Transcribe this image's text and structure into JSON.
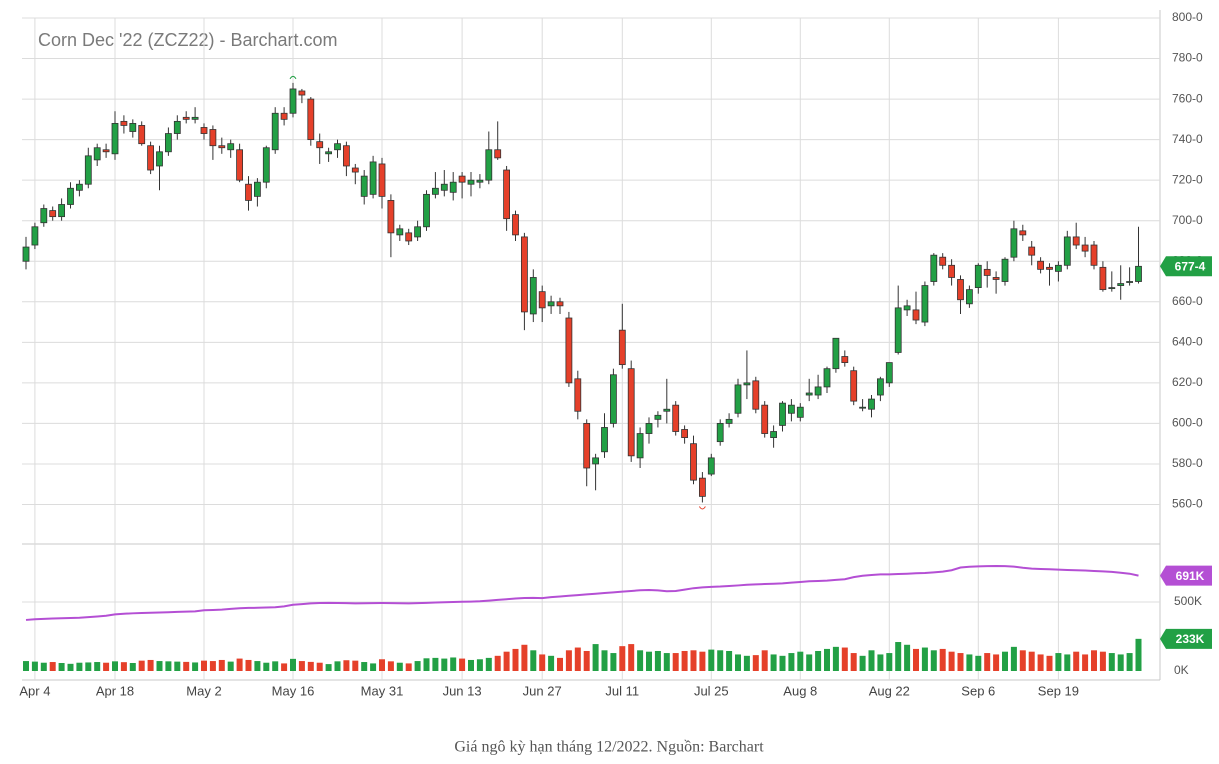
{
  "chart_data": {
    "type": "candlestick",
    "title": "Corn Dec '22 (ZCZ22) - Barchart.com",
    "caption": "Giá ngô kỳ hạn tháng 12/2022. Nguồn: Barchart",
    "up_color": "#22a045",
    "down_color": "#e5402a",
    "categories": [
      null,
      "Apr 4",
      null,
      null,
      null,
      null,
      null,
      null,
      null,
      null,
      "Apr 18",
      null,
      null,
      null,
      null,
      null,
      null,
      null,
      null,
      null,
      "May 2",
      null,
      null,
      null,
      null,
      null,
      null,
      null,
      null,
      null,
      "May 16",
      null,
      null,
      null,
      null,
      null,
      null,
      null,
      null,
      null,
      "May 31",
      null,
      null,
      null,
      null,
      null,
      null,
      null,
      null,
      "Jun 13",
      null,
      null,
      null,
      null,
      null,
      null,
      null,
      null,
      "Jun 27",
      null,
      null,
      null,
      null,
      null,
      null,
      null,
      null,
      "Jul 11",
      null,
      null,
      null,
      null,
      null,
      null,
      null,
      null,
      null,
      "Jul 25",
      null,
      null,
      null,
      null,
      null,
      null,
      null,
      null,
      null,
      "Aug 8",
      null,
      null,
      null,
      null,
      null,
      null,
      null,
      null,
      null,
      "Aug 22",
      null,
      null,
      null,
      null,
      null,
      null,
      null,
      null,
      null,
      "Sep 6",
      null,
      null,
      null,
      null,
      null,
      null,
      null,
      null,
      "Sep 19",
      null,
      null,
      null,
      null,
      null,
      null,
      null,
      null,
      null
    ],
    "candles": [
      [
        680,
        692,
        676,
        687
      ],
      [
        688,
        699,
        686,
        697
      ],
      [
        699,
        708,
        697,
        706
      ],
      [
        705,
        707,
        700,
        702
      ],
      [
        702,
        711,
        700,
        708
      ],
      [
        708,
        719,
        706,
        716
      ],
      [
        715,
        720,
        712,
        718
      ],
      [
        718,
        736,
        716,
        732
      ],
      [
        730,
        738,
        727,
        736
      ],
      [
        735,
        738,
        731,
        734
      ],
      [
        733,
        754,
        730,
        748
      ],
      [
        749,
        752,
        743,
        747
      ],
      [
        744,
        750,
        741,
        748
      ],
      [
        747,
        749,
        737,
        738
      ],
      [
        737,
        739,
        723,
        725
      ],
      [
        727,
        737,
        715,
        734
      ],
      [
        734,
        746,
        732,
        743
      ],
      [
        743,
        752,
        740,
        749
      ],
      [
        751,
        754,
        748,
        750
      ],
      [
        750,
        756,
        748,
        751
      ],
      [
        746,
        748,
        740,
        743
      ],
      [
        745,
        747,
        730,
        737
      ],
      [
        737,
        741,
        733,
        736
      ],
      [
        735,
        740,
        731,
        738
      ],
      [
        735,
        738,
        719,
        720
      ],
      [
        718,
        722,
        705,
        710
      ],
      [
        712,
        721,
        707,
        719
      ],
      [
        719,
        737,
        716,
        736
      ],
      [
        735,
        756,
        733,
        753
      ],
      [
        753,
        756,
        747,
        750
      ],
      [
        753,
        768,
        751,
        765
      ],
      [
        764,
        765,
        758,
        762
      ],
      [
        760,
        761,
        737,
        740
      ],
      [
        739,
        743,
        728,
        736
      ],
      [
        733,
        736,
        729,
        734
      ],
      [
        735,
        740,
        731,
        738
      ],
      [
        737,
        739,
        722,
        727
      ],
      [
        726,
        728,
        718,
        724
      ],
      [
        712,
        725,
        708,
        722
      ],
      [
        713,
        732,
        711,
        729
      ],
      [
        728,
        731,
        706,
        712
      ],
      [
        710,
        713,
        682,
        694
      ],
      [
        693,
        698,
        690,
        696
      ],
      [
        694,
        696,
        688,
        690
      ],
      [
        692,
        700,
        690,
        697
      ],
      [
        697,
        715,
        695,
        713
      ],
      [
        713,
        724,
        711,
        716
      ],
      [
        715,
        725,
        712,
        718
      ],
      [
        714,
        724,
        710,
        719
      ],
      [
        722,
        724,
        711,
        719
      ],
      [
        718,
        724,
        712,
        720
      ],
      [
        719,
        723,
        716,
        720
      ],
      [
        720,
        744,
        718,
        735
      ],
      [
        735,
        749,
        730,
        731
      ],
      [
        725,
        727,
        695,
        701
      ],
      [
        703,
        705,
        690,
        693
      ],
      [
        692,
        694,
        646,
        655
      ],
      [
        654,
        676,
        650,
        672
      ],
      [
        665,
        668,
        650,
        657
      ],
      [
        658,
        663,
        654,
        660
      ],
      [
        660,
        662,
        654,
        658
      ],
      [
        652,
        655,
        618,
        620
      ],
      [
        622,
        626,
        602,
        606
      ],
      [
        600,
        602,
        569,
        578
      ],
      [
        580,
        585,
        567,
        583
      ],
      [
        586,
        605,
        583,
        598
      ],
      [
        600,
        627,
        598,
        624
      ],
      [
        646,
        659,
        627,
        629
      ],
      [
        627,
        631,
        581,
        584
      ],
      [
        583,
        598,
        578,
        595
      ],
      [
        595,
        603,
        590,
        600
      ],
      [
        602,
        606,
        598,
        604
      ],
      [
        606,
        622,
        600,
        607
      ],
      [
        609,
        611,
        594,
        596
      ],
      [
        597,
        599,
        590,
        593
      ],
      [
        590,
        594,
        570,
        572
      ],
      [
        573,
        576,
        561,
        564
      ],
      [
        575,
        585,
        574,
        583
      ],
      [
        591,
        602,
        589,
        600
      ],
      [
        600,
        605,
        598,
        602
      ],
      [
        605,
        622,
        603,
        619
      ],
      [
        619,
        636,
        612,
        620
      ],
      [
        621,
        623,
        605,
        607
      ],
      [
        609,
        611,
        593,
        595
      ],
      [
        593,
        599,
        588,
        596
      ],
      [
        599,
        611,
        596,
        610
      ],
      [
        605,
        612,
        601,
        609
      ],
      [
        603,
        610,
        601,
        608
      ],
      [
        614,
        622,
        611,
        615
      ],
      [
        614,
        624,
        612,
        618
      ],
      [
        618,
        628,
        615,
        627
      ],
      [
        627,
        642,
        625,
        642
      ],
      [
        633,
        636,
        628,
        630
      ],
      [
        626,
        628,
        609,
        611
      ],
      [
        608,
        612,
        606,
        608
      ],
      [
        607,
        614,
        603,
        612
      ],
      [
        614,
        623,
        611,
        622
      ],
      [
        620,
        630,
        618,
        630
      ],
      [
        635,
        668,
        634,
        657
      ],
      [
        656,
        661,
        653,
        658
      ],
      [
        656,
        665,
        649,
        651
      ],
      [
        650,
        670,
        648,
        668
      ],
      [
        670,
        684,
        668,
        683
      ],
      [
        682,
        684,
        676,
        678
      ],
      [
        678,
        681,
        668,
        672
      ],
      [
        671,
        673,
        654,
        661
      ],
      [
        659,
        668,
        657,
        666
      ],
      [
        667,
        679,
        664,
        678
      ],
      [
        676,
        680,
        667,
        673
      ],
      [
        672,
        675,
        664,
        671
      ],
      [
        670,
        682,
        668,
        681
      ],
      [
        682,
        700,
        680,
        696
      ],
      [
        695,
        698,
        690,
        693
      ],
      [
        687,
        690,
        678,
        683
      ],
      [
        680,
        682,
        674,
        676
      ],
      [
        677,
        679,
        668,
        676
      ],
      [
        675,
        680,
        670,
        678
      ],
      [
        678,
        695,
        676,
        692
      ],
      [
        692,
        699,
        686,
        688
      ],
      [
        688,
        692,
        682,
        685
      ],
      [
        688,
        690,
        676,
        678
      ],
      [
        677,
        680,
        665,
        666
      ],
      [
        667,
        675,
        665,
        667
      ],
      [
        668,
        678,
        661,
        669
      ],
      [
        670,
        677,
        668,
        670
      ],
      [
        670,
        697,
        669,
        677.5
      ]
    ],
    "ylim": [
      541,
      800
    ],
    "yticks": [
      {
        "value": 560,
        "label": "560-0"
      },
      {
        "value": 580,
        "label": "580-0"
      },
      {
        "value": 600,
        "label": "600-0"
      },
      {
        "value": 620,
        "label": "620-0"
      },
      {
        "value": 640,
        "label": "640-0"
      },
      {
        "value": 660,
        "label": "660-0"
      },
      {
        "value": 680,
        "label": "680-0"
      },
      {
        "value": 700,
        "label": "700-0"
      },
      {
        "value": 720,
        "label": "720-0"
      },
      {
        "value": 740,
        "label": "740-0"
      },
      {
        "value": 760,
        "label": "760-0"
      },
      {
        "value": 780,
        "label": "780-0"
      },
      {
        "value": 800,
        "label": "800-0"
      }
    ],
    "last_price": {
      "value": 677.5,
      "label": "677-4"
    },
    "volume": {
      "values": [
        72,
        68,
        60,
        65,
        58,
        52,
        60,
        62,
        65,
        60,
        70,
        64,
        58,
        75,
        80,
        72,
        70,
        68,
        66,
        62,
        75,
        72,
        80,
        68,
        90,
        80,
        72,
        60,
        70,
        55,
        88,
        72,
        66,
        60,
        50,
        70,
        78,
        75,
        65,
        55,
        85,
        70,
        60,
        55,
        72,
        92,
        95,
        90,
        98,
        90,
        80,
        85,
        95,
        110,
        140,
        160,
        190,
        150,
        120,
        110,
        95,
        150,
        170,
        145,
        195,
        150,
        130,
        180,
        195,
        150,
        140,
        145,
        130,
        130,
        145,
        150,
        140,
        155,
        150,
        145,
        120,
        110,
        115,
        150,
        120,
        110,
        130,
        140,
        120,
        145,
        160,
        175,
        170,
        130,
        110,
        150,
        120,
        130,
        210,
        190,
        160,
        170,
        150,
        160,
        140,
        130,
        120,
        110,
        130,
        120,
        140,
        175,
        150,
        140,
        120,
        110,
        130,
        120,
        140,
        120,
        150,
        140,
        130,
        120,
        130,
        233
      ],
      "last": {
        "value": 233,
        "label": "233K"
      }
    },
    "open_interest": {
      "color": "#b44fd4",
      "values": [
        370,
        375,
        378,
        380,
        382,
        384,
        386,
        390,
        395,
        400,
        410,
        415,
        418,
        420,
        422,
        424,
        426,
        428,
        430,
        432,
        440,
        442,
        445,
        450,
        455,
        457,
        458,
        460,
        462,
        468,
        480,
        485,
        490,
        493,
        494,
        493,
        492,
        490,
        491,
        492,
        493,
        492,
        491,
        490,
        492,
        494,
        496,
        498,
        500,
        502,
        503,
        505,
        510,
        515,
        520,
        525,
        529,
        530,
        528,
        535,
        540,
        545,
        550,
        555,
        560,
        565,
        570,
        575,
        580,
        585,
        587,
        584,
        578,
        580,
        590,
        600,
        606,
        610,
        612,
        616,
        620,
        625,
        628,
        630,
        632,
        635,
        640,
        645,
        650,
        652,
        655,
        660,
        665,
        680,
        690,
        696,
        700,
        700,
        703,
        705,
        708,
        710,
        715,
        720,
        730,
        750,
        755,
        758,
        760,
        761,
        760,
        756,
        748,
        742,
        739,
        737,
        735,
        732,
        730,
        728,
        725,
        722,
        718,
        712,
        705,
        691
      ],
      "last": {
        "value": 691,
        "label": "691K"
      }
    },
    "y2lim": [
      0,
      913
    ],
    "y2ticks": [
      {
        "value": 0,
        "label": "0K"
      },
      {
        "value": 500,
        "label": "500K"
      }
    ],
    "grid": true
  }
}
